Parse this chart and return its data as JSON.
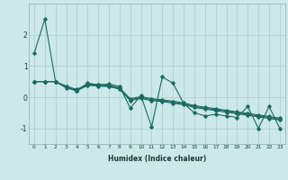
{
  "xlabel": "Humidex (Indice chaleur)",
  "background_color": "#cce8e8",
  "grid_color": "#b0d0d0",
  "line_color": "#1a6a60",
  "x_data": [
    0,
    1,
    2,
    3,
    4,
    5,
    6,
    7,
    8,
    9,
    10,
    11,
    12,
    13,
    14,
    15,
    16,
    17,
    18,
    19,
    20,
    21,
    22,
    23
  ],
  "main_y": [
    1.4,
    2.5,
    0.5,
    0.35,
    0.2,
    0.45,
    0.4,
    0.42,
    0.35,
    -0.35,
    0.05,
    -0.95,
    0.65,
    0.45,
    -0.2,
    -0.5,
    -0.6,
    -0.55,
    -0.6,
    -0.65,
    -0.3,
    -1.0,
    -0.3,
    -1.0
  ],
  "flat1": [
    0.5,
    0.5,
    0.5,
    0.35,
    0.25,
    0.42,
    0.4,
    0.38,
    0.3,
    -0.05,
    0.02,
    -0.05,
    -0.08,
    -0.13,
    -0.18,
    -0.27,
    -0.32,
    -0.37,
    -0.42,
    -0.47,
    -0.52,
    -0.57,
    -0.62,
    -0.67
  ],
  "flat2": [
    0.5,
    0.5,
    0.5,
    0.32,
    0.22,
    0.4,
    0.38,
    0.36,
    0.28,
    -0.08,
    -0.01,
    -0.08,
    -0.11,
    -0.16,
    -0.21,
    -0.3,
    -0.35,
    -0.4,
    -0.45,
    -0.5,
    -0.55,
    -0.6,
    -0.65,
    -0.7
  ],
  "flat3": [
    0.5,
    0.5,
    0.5,
    0.3,
    0.2,
    0.38,
    0.36,
    0.34,
    0.26,
    -0.11,
    -0.04,
    -0.11,
    -0.14,
    -0.19,
    -0.24,
    -0.33,
    -0.38,
    -0.43,
    -0.48,
    -0.53,
    -0.58,
    -0.63,
    -0.68,
    -0.73
  ],
  "xlim": [
    -0.5,
    23.5
  ],
  "ylim": [
    -1.5,
    3.0
  ],
  "yticks": [
    -1,
    0,
    1,
    2
  ],
  "xticks": [
    0,
    1,
    2,
    3,
    4,
    5,
    6,
    7,
    8,
    9,
    10,
    11,
    12,
    13,
    14,
    15,
    16,
    17,
    18,
    19,
    20,
    21,
    22,
    23
  ]
}
